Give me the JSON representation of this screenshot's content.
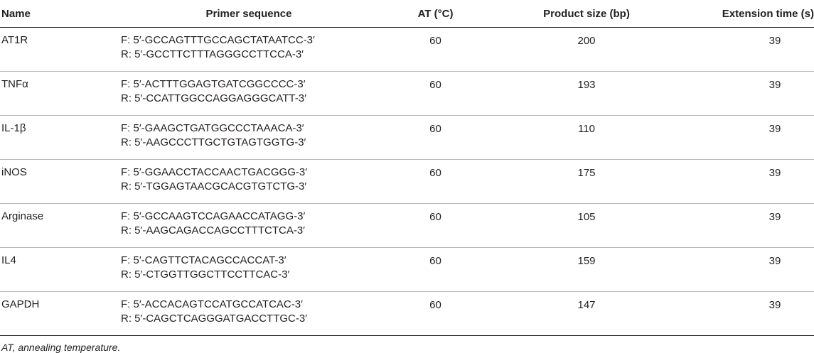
{
  "table": {
    "headers": {
      "name": "Name",
      "sequence": "Primer sequence",
      "at": "AT (°C)",
      "product_size": "Product size (bp)",
      "extension_time": "Extension time (s)"
    },
    "rows": [
      {
        "name": "AT1R",
        "forward": "F: 5′-GCCAGTTTGCCAGCTATAATCC-3′",
        "reverse": "R: 5′-GCCTTCTTTAGGGCCTTCCA-3′",
        "at": "60",
        "size": "200",
        "ext": "39"
      },
      {
        "name": "TNFα",
        "forward": "F: 5′-ACTTTGGAGTGATCGGCCCC-3′",
        "reverse": "R: 5′-CCATTGGCCAGGAGGGCATT-3′",
        "at": "60",
        "size": "193",
        "ext": "39"
      },
      {
        "name": "IL-1β",
        "forward": "F: 5′-GAAGCTGATGGCCCTAAACA-3′",
        "reverse": "R: 5′-AAGCCCTTGCTGTAGTGGTG-3′",
        "at": "60",
        "size": "110",
        "ext": "39"
      },
      {
        "name": "iNOS",
        "forward": "F: 5′-GGAACCTACCAACTGACGGG-3′",
        "reverse": "R: 5′-TGGAGTAACGCACGTGTCTG-3′",
        "at": "60",
        "size": "175",
        "ext": "39"
      },
      {
        "name": "Arginase",
        "forward": "F: 5′-GCCAAGTCCAGAACCATAGG-3′",
        "reverse": "R: 5′-AAGCAGACCAGCCTTTCTCA-3′",
        "at": "60",
        "size": "105",
        "ext": "39"
      },
      {
        "name": "IL4",
        "forward": "F: 5′-CAGTTCTACAGCCACCAT-3′",
        "reverse": "R: 5′-CTGGTTGGCTTCCTTCAC-3′",
        "at": "60",
        "size": "159",
        "ext": "39"
      },
      {
        "name": "GAPDH",
        "forward": "F: 5′-ACCACAGTCCATGCCATCAC-3′",
        "reverse": "R: 5′-CAGCTCAGGGATGACCTTGC-3′",
        "at": "60",
        "size": "147",
        "ext": "39"
      }
    ]
  },
  "footnote": "AT, annealing temperature."
}
